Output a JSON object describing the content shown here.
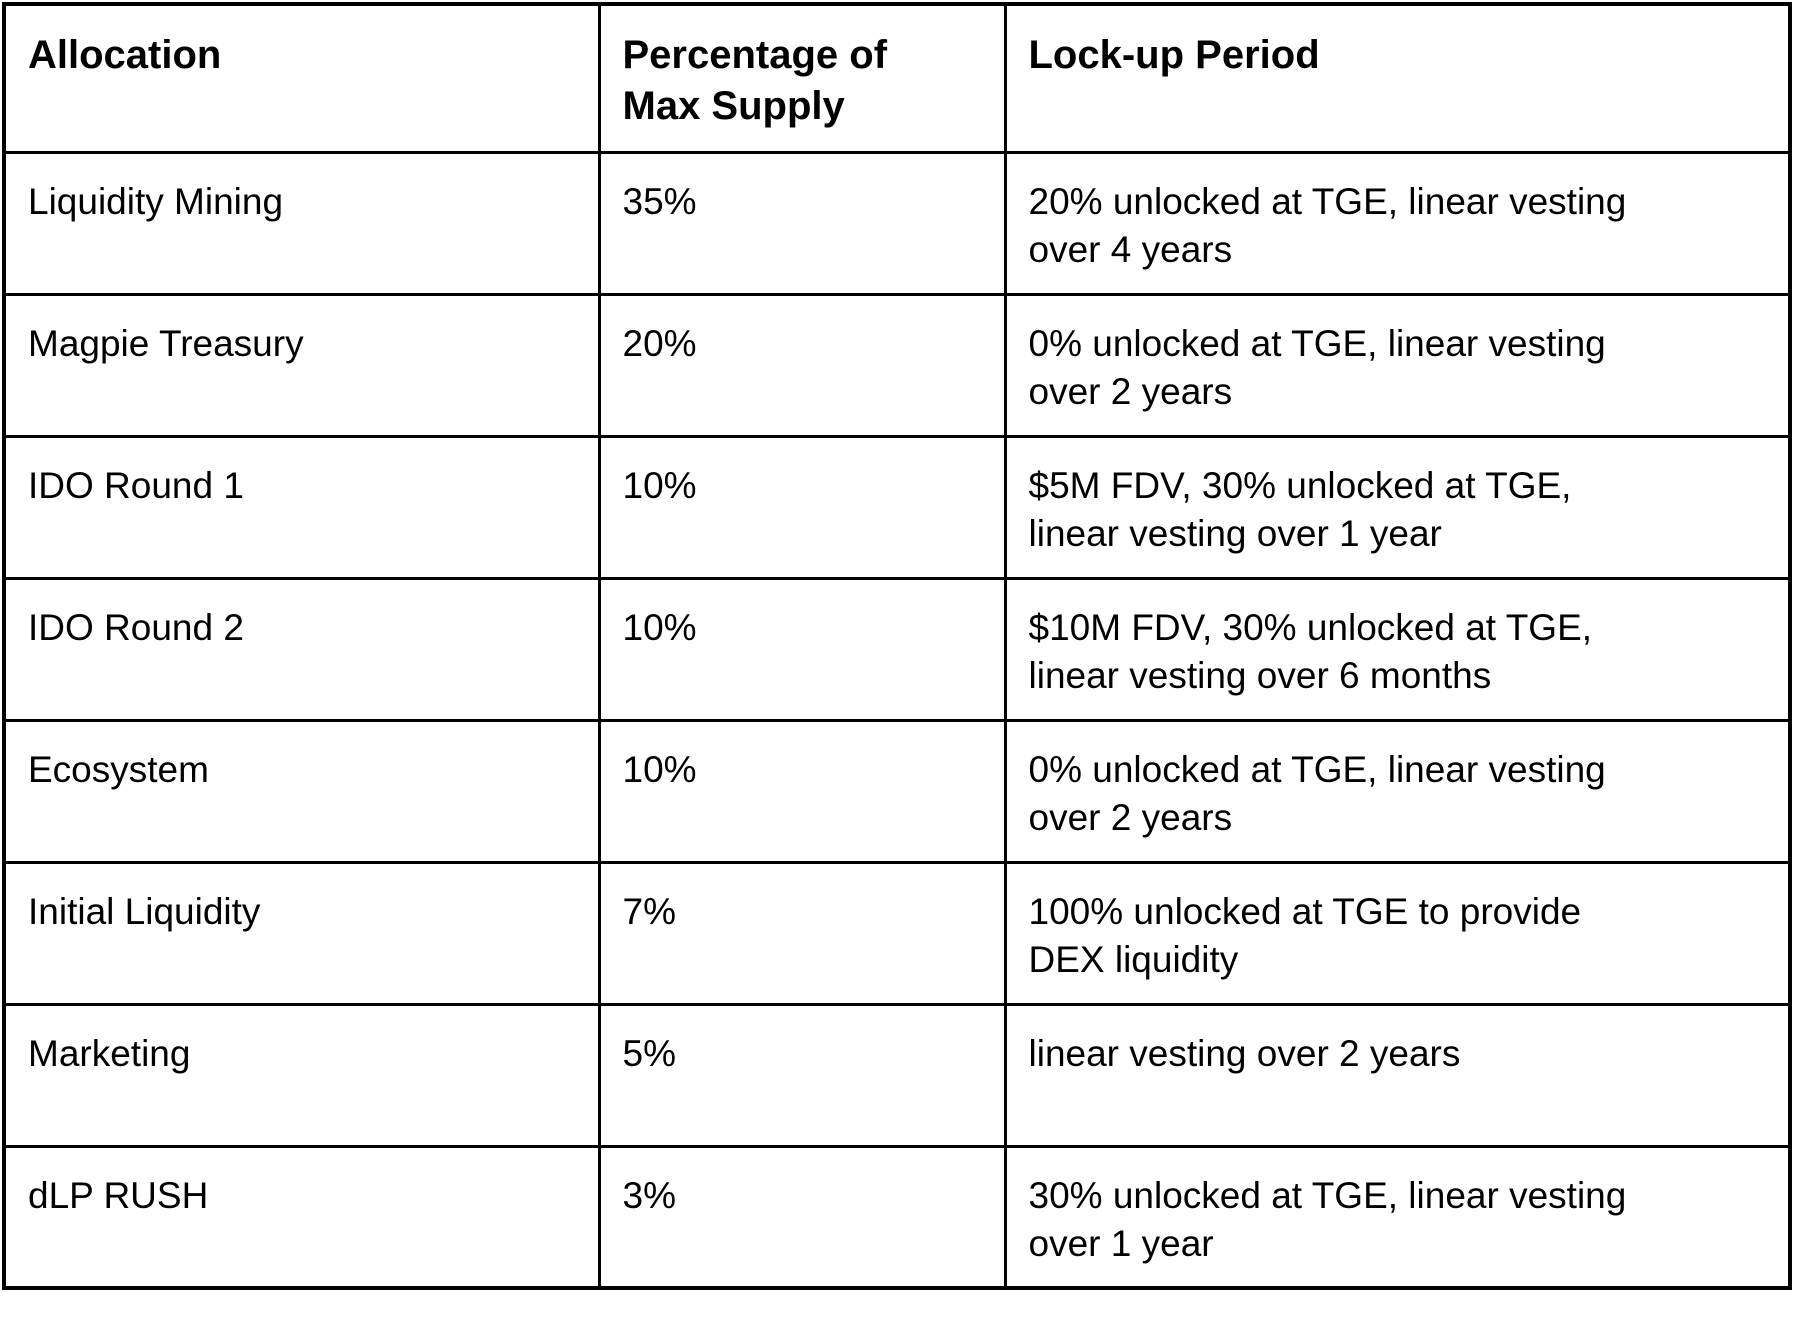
{
  "colors": {
    "background": "#ffffff",
    "border": "#000000",
    "text": "#000000"
  },
  "table": {
    "columns": [
      "Allocation",
      "Percentage of\nMax Supply",
      "Lock-up Period"
    ],
    "rows": [
      {
        "allocation": "Liquidity Mining",
        "percentage": "35%",
        "lockup": "20% unlocked at TGE, linear vesting\nover 4 years"
      },
      {
        "allocation": "Magpie Treasury",
        "percentage": "20%",
        "lockup": "0% unlocked at TGE, linear vesting\nover 2 years"
      },
      {
        "allocation": "IDO Round 1",
        "percentage": "10%",
        "lockup": "$5M FDV, 30% unlocked at TGE,\nlinear vesting over 1 year"
      },
      {
        "allocation": "IDO Round 2",
        "percentage": "10%",
        "lockup": "$10M FDV, 30% unlocked at TGE,\nlinear vesting over 6 months"
      },
      {
        "allocation": "Ecosystem",
        "percentage": "10%",
        "lockup": "0% unlocked at TGE, linear vesting\nover 2 years"
      },
      {
        "allocation": "Initial Liquidity",
        "percentage": "7%",
        "lockup": "100% unlocked at TGE to provide\nDEX liquidity"
      },
      {
        "allocation": "Marketing",
        "percentage": "5%",
        "lockup": "linear vesting over 2 years"
      },
      {
        "allocation": "dLP RUSH",
        "percentage": "3%",
        "lockup": "30% unlocked at TGE, linear vesting\nover 1 year"
      }
    ]
  }
}
